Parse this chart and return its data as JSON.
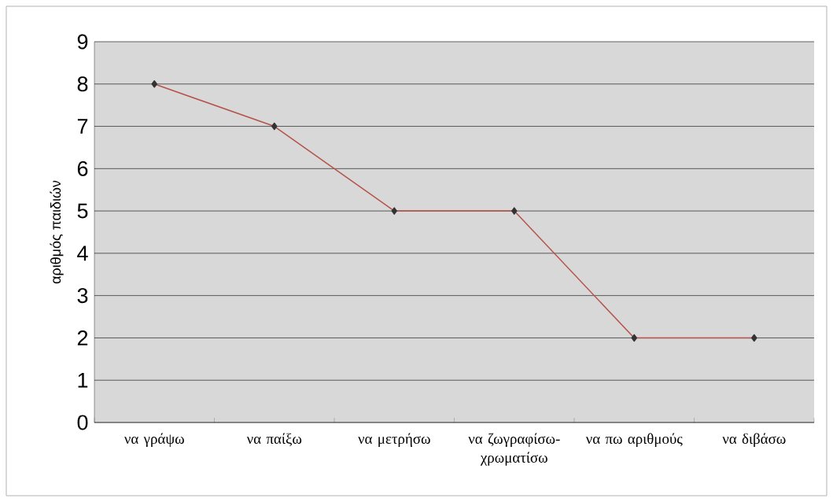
{
  "chart_data": {
    "type": "line",
    "ylabel": "αριθμός παιδιών",
    "categories": [
      "να γράψω",
      "να παίξω",
      "να μετρήσω",
      "να ζωγραφίσω-χρωματίσω",
      "να πω αριθμούς",
      "να διβάσω"
    ],
    "values": [
      8,
      7,
      5,
      5,
      2,
      2
    ],
    "color": "#b5524a",
    "ylim": [
      0,
      9
    ],
    "yticks": [
      0,
      1,
      2,
      3,
      4,
      5,
      6,
      7,
      8,
      9
    ],
    "grid": "y",
    "marker": "diamond",
    "line_style": "solid"
  }
}
